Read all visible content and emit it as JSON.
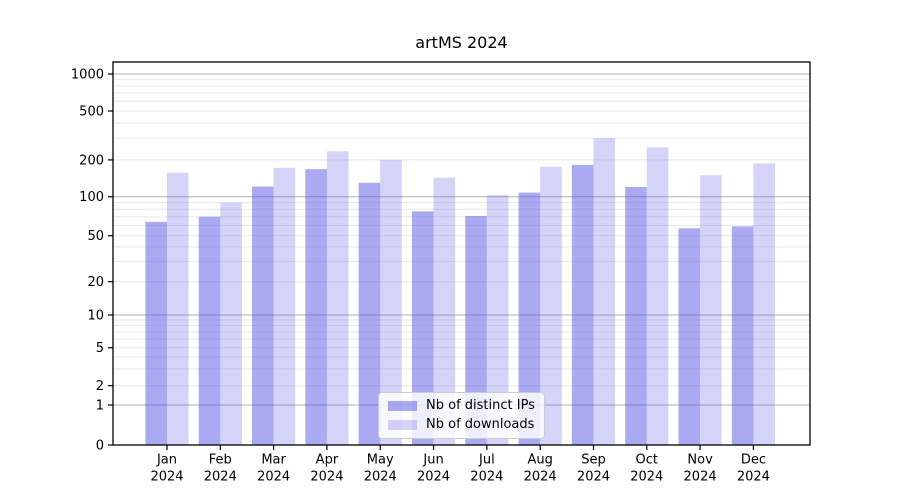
{
  "figure": {
    "background": "#ffffff"
  },
  "chart_data": {
    "type": "bar",
    "title": "artMS 2024",
    "categories": [
      "Jan",
      "Feb",
      "Mar",
      "Apr",
      "May",
      "Jun",
      "Jul",
      "Aug",
      "Sep",
      "Oct",
      "Nov",
      "Dec"
    ],
    "category_year_line": "2024",
    "series": [
      {
        "name": "Nb of distinct IPs",
        "color": "#5555e6",
        "alpha": 0.5,
        "values": [
          64,
          70,
          121,
          168,
          130,
          77,
          71,
          108,
          182,
          120,
          57,
          59
        ]
      },
      {
        "name": "Nb of downloads",
        "color": "#5555e6",
        "alpha": 0.25,
        "values": [
          157,
          90,
          172,
          235,
          200,
          143,
          103,
          176,
          300,
          253,
          150,
          187
        ]
      }
    ],
    "yscale": "symlog",
    "yticks": [
      0,
      1,
      2,
      5,
      10,
      20,
      50,
      100,
      200,
      500,
      1000
    ],
    "ylim": [
      0,
      1000
    ],
    "xlabel": "",
    "ylabel": "",
    "grid": true,
    "legend_position": "lower center",
    "colors": {
      "major_grid": "#b0b0b0",
      "minor_grid": "#e8e8e8",
      "spine": "#000000",
      "text": "#000000"
    }
  }
}
